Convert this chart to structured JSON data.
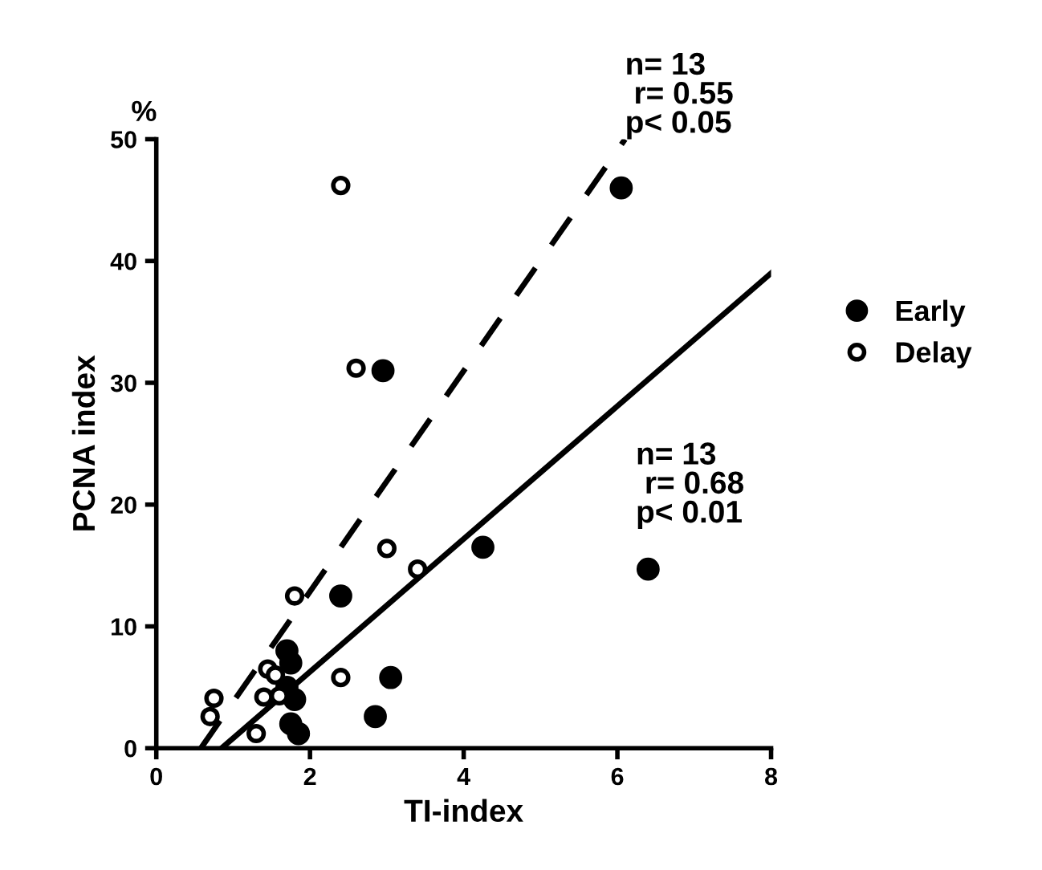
{
  "chart_data": {
    "type": "scatter",
    "xlabel": "TI-index",
    "ylabel": "PCNA index",
    "xlim": [
      0,
      8
    ],
    "ylim": [
      0,
      50
    ],
    "xticks": [
      0,
      2,
      4,
      6,
      8
    ],
    "yticks": [
      0,
      10,
      20,
      30,
      40,
      50
    ],
    "grid": false,
    "legend": "right",
    "marker": "circle",
    "series": [
      {
        "name": "Early",
        "color": "#000000",
        "x": [
          6.05,
          2.95,
          4.25,
          6.4,
          2.4,
          3.05,
          2.85,
          1.7,
          1.75,
          1.8,
          1.7,
          1.75,
          1.85
        ],
        "values": [
          46,
          31,
          16.5,
          14.7,
          12.5,
          5.8,
          2.6,
          8,
          7,
          4,
          5,
          2,
          1.2
        ]
      },
      {
        "name": "Delay",
        "color": "#ffffff",
        "x": [
          2.4,
          2.6,
          3.0,
          3.4,
          1.8,
          2.4,
          1.45,
          1.4,
          0.75,
          0.7,
          1.3,
          1.6,
          1.55
        ],
        "values": [
          46.2,
          31.2,
          16.4,
          14.7,
          12.5,
          5.8,
          6.5,
          4.2,
          4.1,
          2.6,
          1.2,
          4.3,
          6
        ]
      },
      {
        "type": "line",
        "color": "#000000",
        "line_style": "dashed",
        "marker": "none",
        "x": [
          0.58,
          6.1
        ],
        "values": [
          0,
          50
        ]
      },
      {
        "type": "line",
        "color": "#000000",
        "line_style": "solid",
        "marker": "none",
        "x": [
          0.85,
          8
        ],
        "values": [
          0,
          39
        ]
      }
    ],
    "annotations": [
      "%",
      {
        "text": "n= 13\n r= 0.55\np< 0.05",
        "x": 6.1,
        "y": 50
      },
      "n= 13\n r= 0.68\np< 0.01"
    ]
  }
}
